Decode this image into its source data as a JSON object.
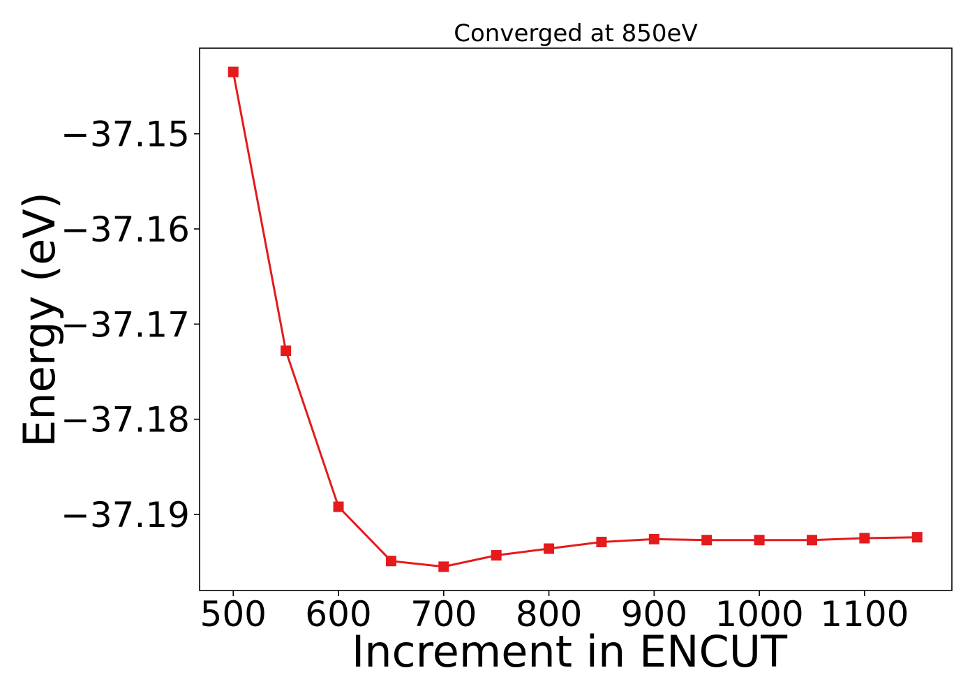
{
  "chart_data": {
    "type": "line",
    "title": "Converged at 850eV",
    "xlabel": "Increment in ENCUT",
    "ylabel": "Energy (eV)",
    "x": [
      500,
      550,
      600,
      650,
      700,
      750,
      800,
      850,
      900,
      950,
      1000,
      1050,
      1100,
      1150
    ],
    "series": [
      {
        "values": [
          -37.1435,
          -37.1728,
          -37.1892,
          -37.1949,
          -37.1955,
          -37.1943,
          -37.1936,
          -37.1929,
          -37.1926,
          -37.1927,
          -37.1927,
          -37.1927,
          -37.1925,
          -37.1924
        ],
        "color": "#e41a1c",
        "marker": "square"
      }
    ],
    "xlim": [
      468,
      1183
    ],
    "ylim": [
      -37.198,
      -37.141
    ],
    "xticks": [
      500,
      600,
      700,
      800,
      900,
      1000,
      1100
    ],
    "xtick_labels": [
      "500",
      "600",
      "700",
      "800",
      "900",
      "1000",
      "1100"
    ],
    "yticks": [
      -37.15,
      -37.16,
      -37.17,
      -37.18,
      -37.19
    ],
    "ytick_labels": [
      "−37.15",
      "−37.16",
      "−37.17",
      "−37.18",
      "−37.19"
    ],
    "grid": false,
    "legend": "none"
  }
}
